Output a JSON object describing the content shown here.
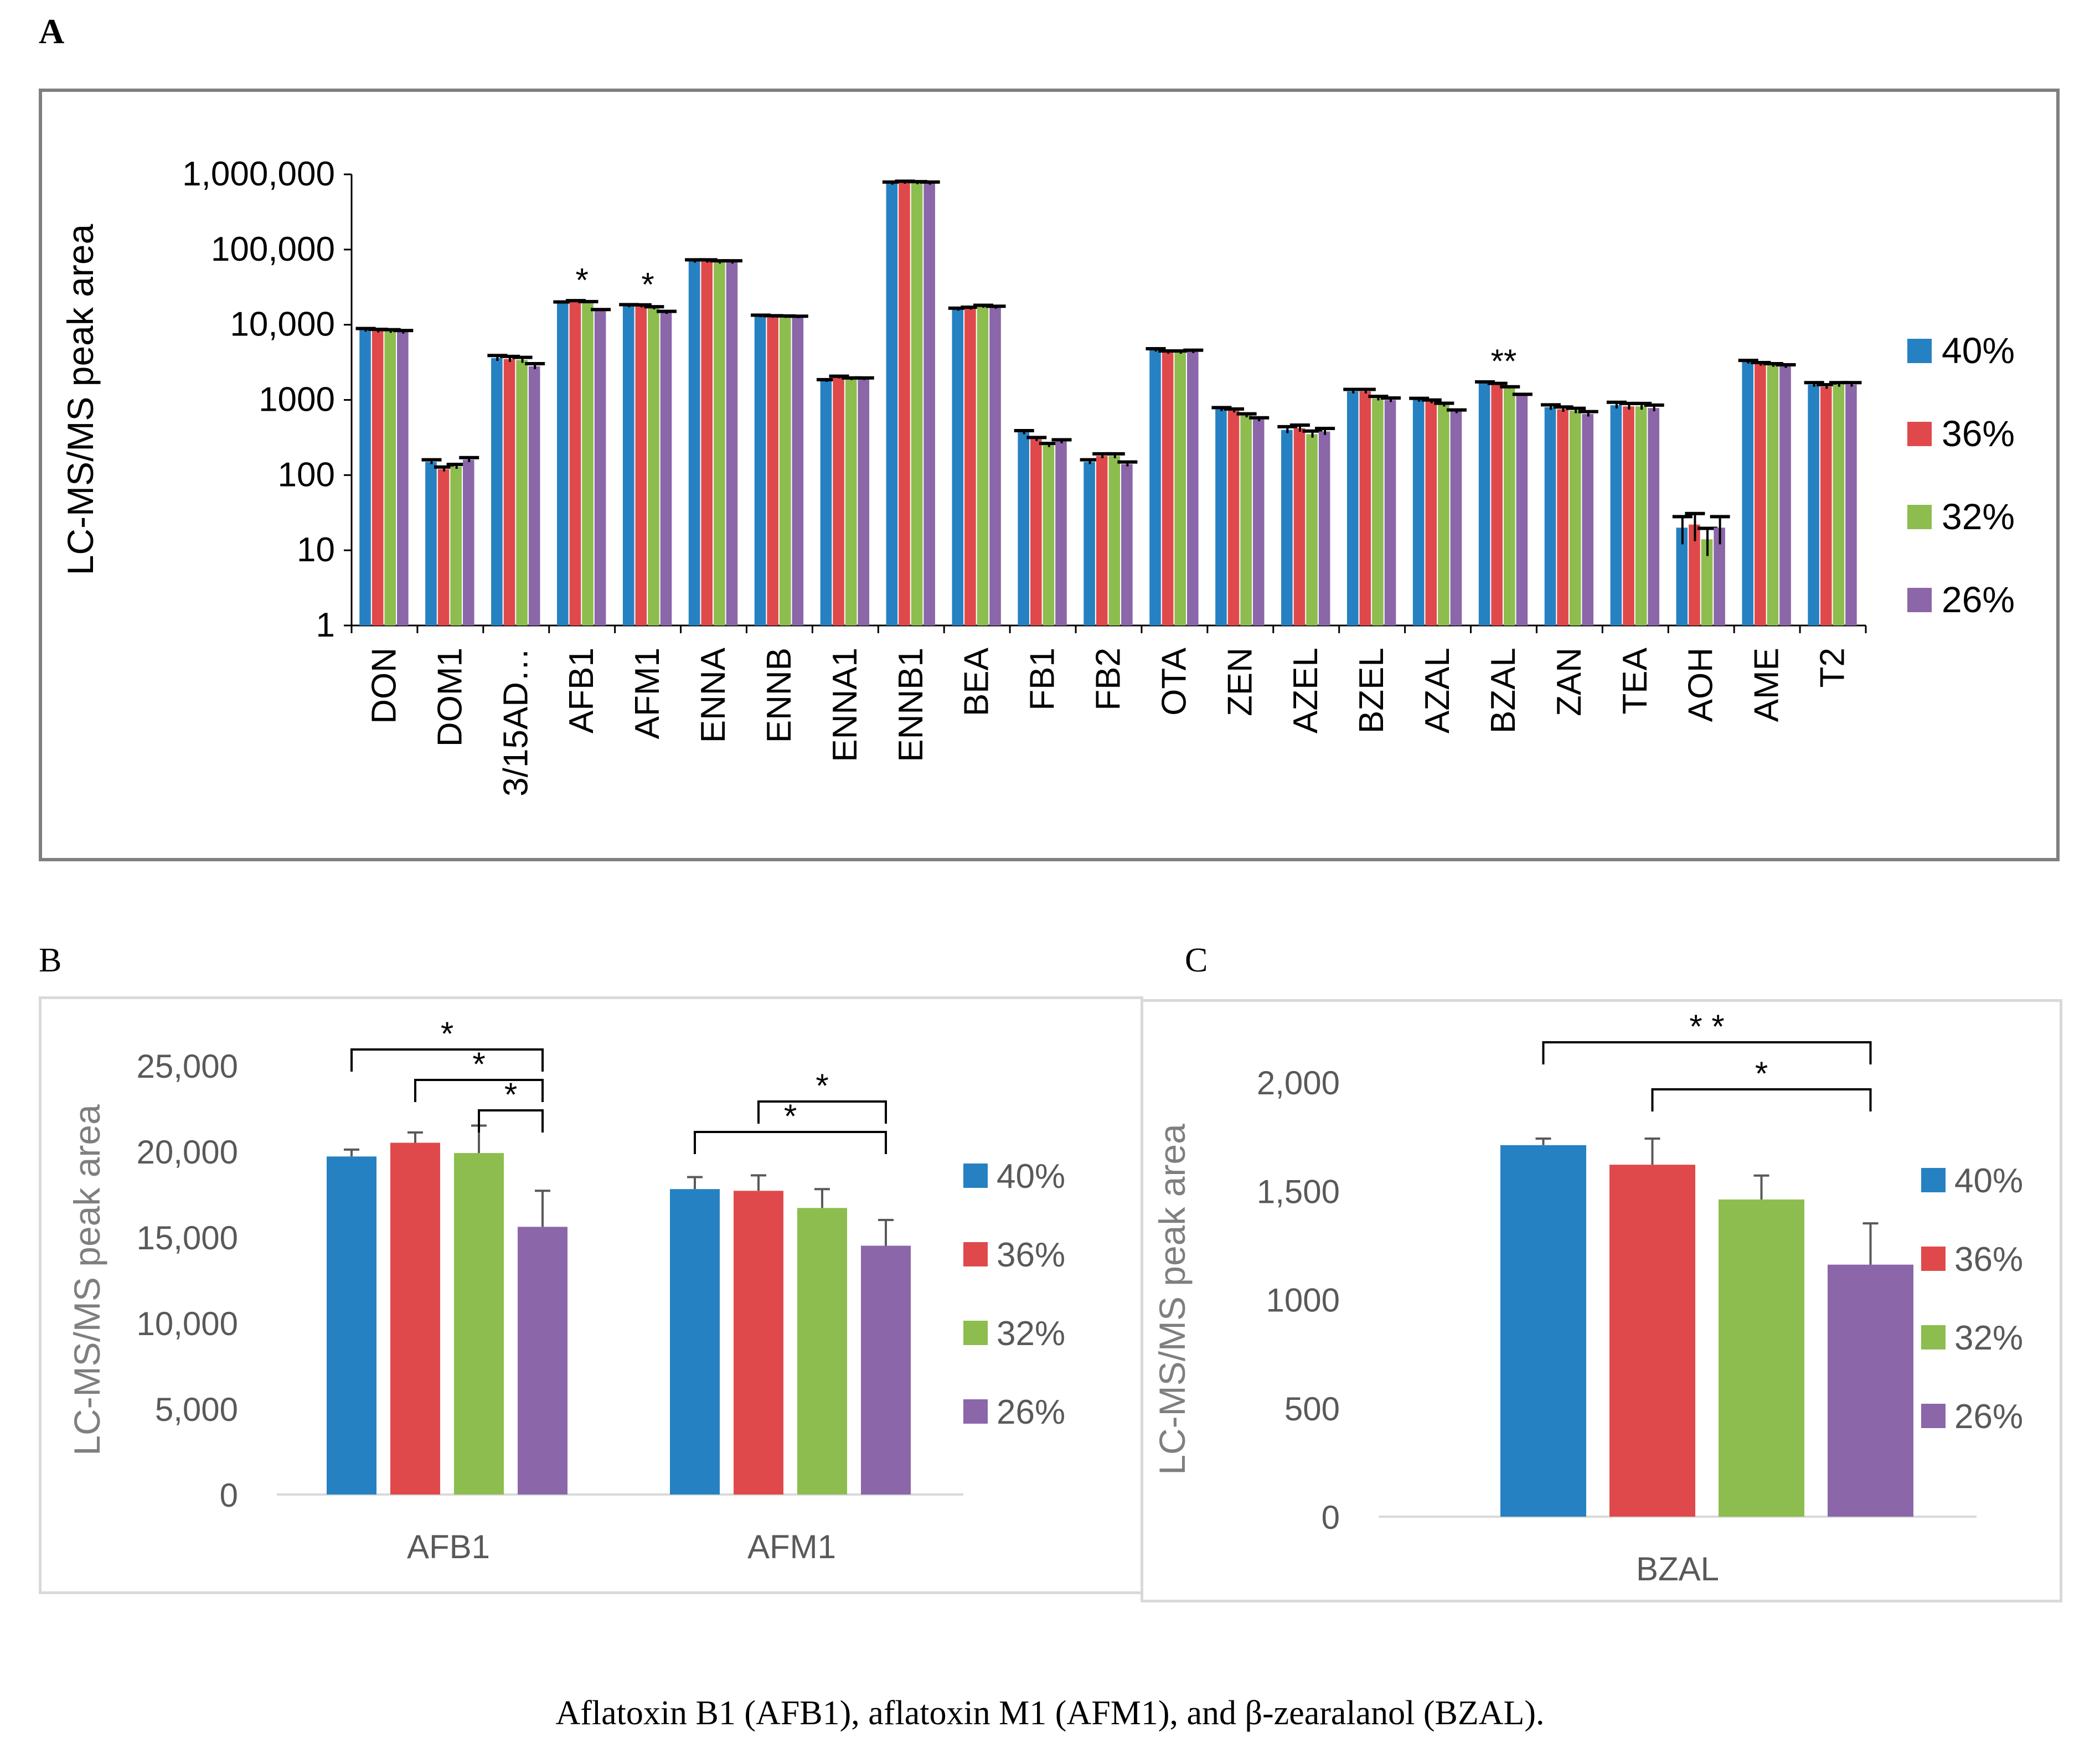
{
  "caption": "Aflatoxin B1 (AFB1), aflatoxin M1 (AFM1), and β-zearalanol (BZAL).",
  "series_colors": {
    "40%": "#2681c2",
    "36%": "#e0494b",
    "32%": "#8cbd4e",
    "26%": "#8b66a8"
  },
  "chart_data": [
    {
      "panel": "A",
      "type": "bar",
      "scale": "log10",
      "ylabel": "LC-MS/MS peak area",
      "ylim": [
        1,
        1000000
      ],
      "yticks": [
        1,
        10,
        100,
        1000,
        10000,
        100000,
        1000000
      ],
      "ytick_labels": [
        "1",
        "10",
        "100",
        "1000",
        "10,000",
        "100,000",
        "1,000,000"
      ],
      "categories": [
        "DON",
        "DOM1",
        "3/15AD…",
        "AFB1",
        "AFM1",
        "ENNA",
        "ENNB",
        "ENNA1",
        "ENNB1",
        "BEA",
        "FB1",
        "FB2",
        "OTA",
        "ZEN",
        "AZEL",
        "BZEL",
        "AZAL",
        "BZAL",
        "ZAN",
        "TEA",
        "AOH",
        "AME",
        "T2"
      ],
      "series": [
        {
          "name": "40%",
          "values": [
            8500,
            150,
            3600,
            19700,
            17800,
            70000,
            13000,
            1800,
            760000,
            16000,
            370,
            150,
            4600,
            750,
            400,
            1300,
            1000,
            1700,
            800,
            850,
            20,
            3200,
            1600
          ],
          "errors": [
            400,
            10,
            300,
            400,
            700,
            3000,
            400,
            60,
            30000,
            600,
            20,
            10,
            200,
            40,
            40,
            80,
            50,
            40,
            60,
            80,
            8,
            150,
            100
          ]
        },
        {
          "name": "36%",
          "values": [
            8300,
            120,
            3500,
            20500,
            17700,
            70000,
            12800,
            2000,
            780000,
            16500,
            300,
            180,
            4300,
            720,
            420,
            1300,
            950,
            1620,
            750,
            820,
            22,
            3000,
            1500
          ]
        },
        {
          "name": "32%",
          "values": [
            8200,
            130,
            3400,
            19900,
            16700,
            68000,
            12700,
            1900,
            770000,
            17500,
            250,
            180,
            4300,
            620,
            350,
            1050,
            860,
            1460,
            720,
            820,
            14,
            2900,
            1600
          ]
        },
        {
          "name": "26%",
          "values": [
            8000,
            160,
            2800,
            15600,
            14500,
            68000,
            12600,
            1900,
            760000,
            17000,
            280,
            140,
            4400,
            550,
            380,
            1000,
            700,
            1160,
            650,
            780,
            20,
            2800,
            1600
          ]
        }
      ],
      "significance": [
        {
          "category": "AFB1",
          "label": "*"
        },
        {
          "category": "AFM1",
          "label": "*"
        },
        {
          "category": "BZAL",
          "label": "**"
        }
      ],
      "legend": [
        "40%",
        "36%",
        "32%",
        "26%"
      ],
      "legend_position": "right"
    },
    {
      "panel": "B",
      "type": "bar",
      "ylabel": "LC-MS/MS peak area",
      "ylim": [
        0,
        25000
      ],
      "yticks": [
        0,
        5000,
        10000,
        15000,
        20000,
        25000
      ],
      "ytick_labels": [
        "0",
        "5,000",
        "10,000",
        "15,000",
        "20,000",
        "25,000"
      ],
      "categories": [
        "AFB1",
        "AFM1"
      ],
      "series": [
        {
          "name": "40%",
          "values": [
            19700,
            17800
          ],
          "errors": [
            400,
            700
          ]
        },
        {
          "name": "36%",
          "values": [
            20500,
            17700
          ],
          "errors": [
            600,
            900
          ]
        },
        {
          "name": "32%",
          "values": [
            19900,
            16700
          ],
          "errors": [
            1600,
            1100
          ]
        },
        {
          "name": "26%",
          "values": [
            15600,
            14500
          ],
          "errors": [
            2100,
            1500
          ]
        }
      ],
      "brackets": [
        {
          "category": "AFB1",
          "from": "40%",
          "to": "26%",
          "label": "*",
          "level": 3
        },
        {
          "category": "AFB1",
          "from": "36%",
          "to": "26%",
          "label": "*",
          "level": 2
        },
        {
          "category": "AFB1",
          "from": "32%",
          "to": "26%",
          "label": "*",
          "level": 1
        },
        {
          "category": "AFM1",
          "from": "36%",
          "to": "26%",
          "label": "*",
          "level": 2
        },
        {
          "category": "AFM1",
          "from": "40%",
          "to": "26%",
          "label": "*",
          "level": 1
        }
      ],
      "legend": [
        "40%",
        "36%",
        "32%",
        "26%"
      ],
      "legend_position": "right"
    },
    {
      "panel": "C",
      "type": "bar",
      "ylabel": "LC-MS/MS peak area",
      "ylim": [
        0,
        2000
      ],
      "yticks": [
        0,
        500,
        1000,
        1500,
        2000
      ],
      "ytick_labels": [
        "0",
        "500",
        "1000",
        "1,500",
        "2,000"
      ],
      "categories": [
        "BZAL"
      ],
      "series": [
        {
          "name": "40%",
          "values": [
            1710
          ],
          "errors": [
            30
          ]
        },
        {
          "name": "36%",
          "values": [
            1620
          ],
          "errors": [
            120
          ]
        },
        {
          "name": "32%",
          "values": [
            1460
          ],
          "errors": [
            110
          ]
        },
        {
          "name": "26%",
          "values": [
            1160
          ],
          "errors": [
            190
          ]
        }
      ],
      "brackets": [
        {
          "category": "BZAL",
          "from": "40%",
          "to": "26%",
          "label": "* *",
          "level": 2
        },
        {
          "category": "BZAL",
          "from": "36%",
          "to": "26%",
          "label": "*",
          "level": 1
        }
      ],
      "legend": [
        "40%",
        "36%",
        "32%",
        "26%"
      ],
      "legend_position": "right"
    }
  ],
  "panels": {
    "a": "A",
    "b": "B",
    "c": "C"
  }
}
